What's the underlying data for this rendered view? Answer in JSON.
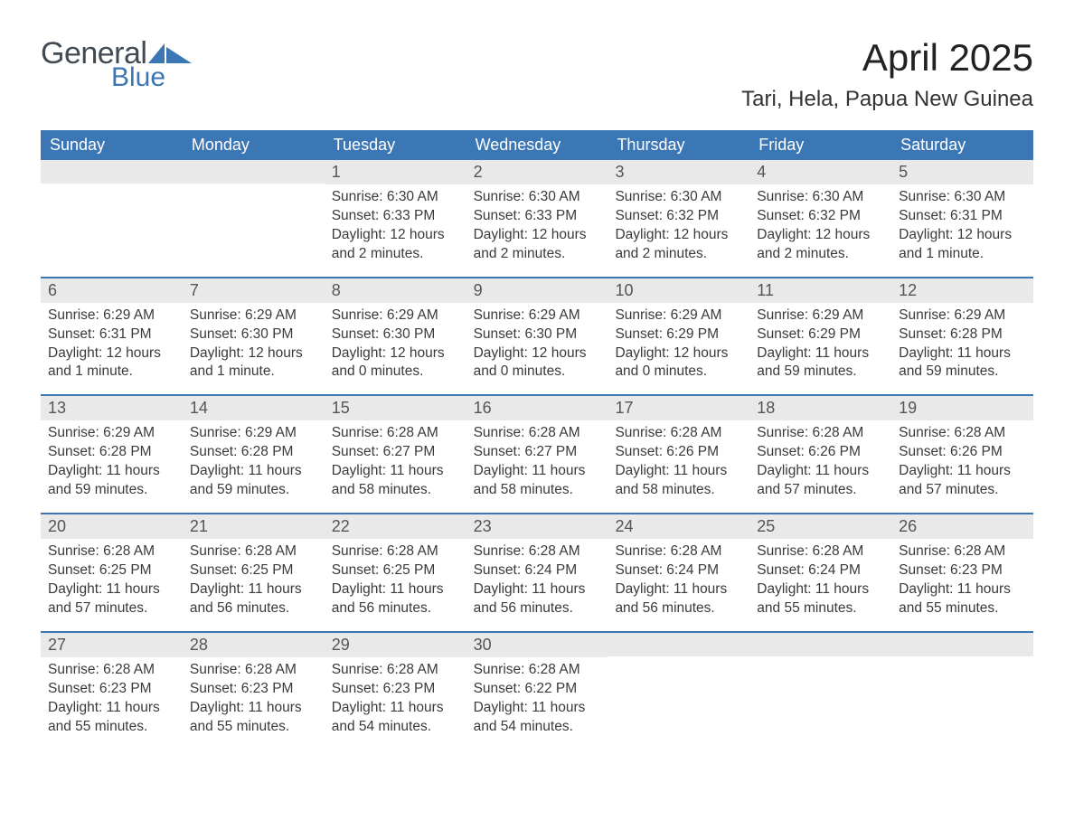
{
  "brand": {
    "word1": "General",
    "word2": "Blue"
  },
  "title": "April 2025",
  "location": "Tari, Hela, Papua New Guinea",
  "colors": {
    "header_bg": "#3b76b5",
    "header_text": "#ffffff",
    "daynum_bg": "#e9e9e9",
    "week_divider": "#3b76b5",
    "body_text": "#3a3a3a",
    "logo_gray": "#414a52",
    "logo_blue": "#3b76b5"
  },
  "typography": {
    "title_fontsize": 42,
    "location_fontsize": 24,
    "dow_fontsize": 18,
    "daynum_fontsize": 18,
    "body_fontsize": 15.5
  },
  "days_of_week": [
    "Sunday",
    "Monday",
    "Tuesday",
    "Wednesday",
    "Thursday",
    "Friday",
    "Saturday"
  ],
  "weeks": [
    [
      {
        "n": "",
        "sr": "",
        "ss": "",
        "dl": ""
      },
      {
        "n": "",
        "sr": "",
        "ss": "",
        "dl": ""
      },
      {
        "n": "1",
        "sr": "Sunrise: 6:30 AM",
        "ss": "Sunset: 6:33 PM",
        "dl": "Daylight: 12 hours and 2 minutes."
      },
      {
        "n": "2",
        "sr": "Sunrise: 6:30 AM",
        "ss": "Sunset: 6:33 PM",
        "dl": "Daylight: 12 hours and 2 minutes."
      },
      {
        "n": "3",
        "sr": "Sunrise: 6:30 AM",
        "ss": "Sunset: 6:32 PM",
        "dl": "Daylight: 12 hours and 2 minutes."
      },
      {
        "n": "4",
        "sr": "Sunrise: 6:30 AM",
        "ss": "Sunset: 6:32 PM",
        "dl": "Daylight: 12 hours and 2 minutes."
      },
      {
        "n": "5",
        "sr": "Sunrise: 6:30 AM",
        "ss": "Sunset: 6:31 PM",
        "dl": "Daylight: 12 hours and 1 minute."
      }
    ],
    [
      {
        "n": "6",
        "sr": "Sunrise: 6:29 AM",
        "ss": "Sunset: 6:31 PM",
        "dl": "Daylight: 12 hours and 1 minute."
      },
      {
        "n": "7",
        "sr": "Sunrise: 6:29 AM",
        "ss": "Sunset: 6:30 PM",
        "dl": "Daylight: 12 hours and 1 minute."
      },
      {
        "n": "8",
        "sr": "Sunrise: 6:29 AM",
        "ss": "Sunset: 6:30 PM",
        "dl": "Daylight: 12 hours and 0 minutes."
      },
      {
        "n": "9",
        "sr": "Sunrise: 6:29 AM",
        "ss": "Sunset: 6:30 PM",
        "dl": "Daylight: 12 hours and 0 minutes."
      },
      {
        "n": "10",
        "sr": "Sunrise: 6:29 AM",
        "ss": "Sunset: 6:29 PM",
        "dl": "Daylight: 12 hours and 0 minutes."
      },
      {
        "n": "11",
        "sr": "Sunrise: 6:29 AM",
        "ss": "Sunset: 6:29 PM",
        "dl": "Daylight: 11 hours and 59 minutes."
      },
      {
        "n": "12",
        "sr": "Sunrise: 6:29 AM",
        "ss": "Sunset: 6:28 PM",
        "dl": "Daylight: 11 hours and 59 minutes."
      }
    ],
    [
      {
        "n": "13",
        "sr": "Sunrise: 6:29 AM",
        "ss": "Sunset: 6:28 PM",
        "dl": "Daylight: 11 hours and 59 minutes."
      },
      {
        "n": "14",
        "sr": "Sunrise: 6:29 AM",
        "ss": "Sunset: 6:28 PM",
        "dl": "Daylight: 11 hours and 59 minutes."
      },
      {
        "n": "15",
        "sr": "Sunrise: 6:28 AM",
        "ss": "Sunset: 6:27 PM",
        "dl": "Daylight: 11 hours and 58 minutes."
      },
      {
        "n": "16",
        "sr": "Sunrise: 6:28 AM",
        "ss": "Sunset: 6:27 PM",
        "dl": "Daylight: 11 hours and 58 minutes."
      },
      {
        "n": "17",
        "sr": "Sunrise: 6:28 AM",
        "ss": "Sunset: 6:26 PM",
        "dl": "Daylight: 11 hours and 58 minutes."
      },
      {
        "n": "18",
        "sr": "Sunrise: 6:28 AM",
        "ss": "Sunset: 6:26 PM",
        "dl": "Daylight: 11 hours and 57 minutes."
      },
      {
        "n": "19",
        "sr": "Sunrise: 6:28 AM",
        "ss": "Sunset: 6:26 PM",
        "dl": "Daylight: 11 hours and 57 minutes."
      }
    ],
    [
      {
        "n": "20",
        "sr": "Sunrise: 6:28 AM",
        "ss": "Sunset: 6:25 PM",
        "dl": "Daylight: 11 hours and 57 minutes."
      },
      {
        "n": "21",
        "sr": "Sunrise: 6:28 AM",
        "ss": "Sunset: 6:25 PM",
        "dl": "Daylight: 11 hours and 56 minutes."
      },
      {
        "n": "22",
        "sr": "Sunrise: 6:28 AM",
        "ss": "Sunset: 6:25 PM",
        "dl": "Daylight: 11 hours and 56 minutes."
      },
      {
        "n": "23",
        "sr": "Sunrise: 6:28 AM",
        "ss": "Sunset: 6:24 PM",
        "dl": "Daylight: 11 hours and 56 minutes."
      },
      {
        "n": "24",
        "sr": "Sunrise: 6:28 AM",
        "ss": "Sunset: 6:24 PM",
        "dl": "Daylight: 11 hours and 56 minutes."
      },
      {
        "n": "25",
        "sr": "Sunrise: 6:28 AM",
        "ss": "Sunset: 6:24 PM",
        "dl": "Daylight: 11 hours and 55 minutes."
      },
      {
        "n": "26",
        "sr": "Sunrise: 6:28 AM",
        "ss": "Sunset: 6:23 PM",
        "dl": "Daylight: 11 hours and 55 minutes."
      }
    ],
    [
      {
        "n": "27",
        "sr": "Sunrise: 6:28 AM",
        "ss": "Sunset: 6:23 PM",
        "dl": "Daylight: 11 hours and 55 minutes."
      },
      {
        "n": "28",
        "sr": "Sunrise: 6:28 AM",
        "ss": "Sunset: 6:23 PM",
        "dl": "Daylight: 11 hours and 55 minutes."
      },
      {
        "n": "29",
        "sr": "Sunrise: 6:28 AM",
        "ss": "Sunset: 6:23 PM",
        "dl": "Daylight: 11 hours and 54 minutes."
      },
      {
        "n": "30",
        "sr": "Sunrise: 6:28 AM",
        "ss": "Sunset: 6:22 PM",
        "dl": "Daylight: 11 hours and 54 minutes."
      },
      {
        "n": "",
        "sr": "",
        "ss": "",
        "dl": ""
      },
      {
        "n": "",
        "sr": "",
        "ss": "",
        "dl": ""
      },
      {
        "n": "",
        "sr": "",
        "ss": "",
        "dl": ""
      }
    ]
  ]
}
